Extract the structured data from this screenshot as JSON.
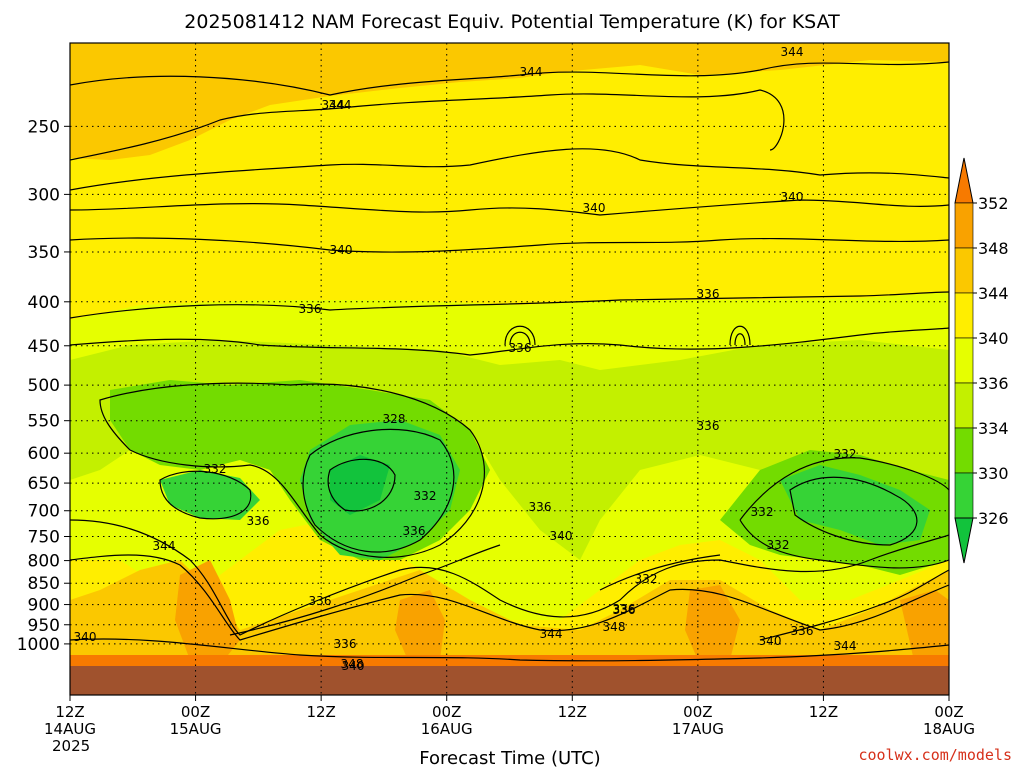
{
  "chart_data": {
    "type": "contour",
    "title": "2025081412 NAM Forecast Equiv. Potential Temperature (K) for KSAT",
    "xlabel": "Forecast Time (UTC)",
    "ylabel": "",
    "y_scale": "log-pressure",
    "y_direction": "decreasing-upward",
    "y_ticks": [
      "250",
      "300",
      "350",
      "400",
      "450",
      "500",
      "550",
      "600",
      "650",
      "700",
      "750",
      "800",
      "850",
      "900",
      "950",
      "1000"
    ],
    "x_ticks": [
      {
        "line1": "12Z",
        "line2": "14AUG",
        "line3": "2025"
      },
      {
        "line1": "00Z",
        "line2": "15AUG",
        "line3": ""
      },
      {
        "line1": "12Z",
        "line2": "",
        "line3": ""
      },
      {
        "line1": "00Z",
        "line2": "16AUG",
        "line3": ""
      },
      {
        "line1": "12Z",
        "line2": "",
        "line3": ""
      },
      {
        "line1": "00Z",
        "line2": "17AUG",
        "line3": ""
      },
      {
        "line1": "12Z",
        "line2": "",
        "line3": ""
      },
      {
        "line1": "00Z",
        "line2": "18AUG",
        "line3": ""
      }
    ],
    "grid": true,
    "colorbar": {
      "position": "right",
      "ticks": [
        "352",
        "348",
        "344",
        "340",
        "336",
        "334",
        "330",
        "326"
      ],
      "colors": [
        "#f77a00",
        "#f9a200",
        "#fbc800",
        "#ffee00",
        "#e6ff00",
        "#c3f000",
        "#73dc00",
        "#36d336",
        "#12c33c"
      ]
    },
    "contour_labels": [
      "344",
      "344",
      "344",
      "344",
      "340",
      "340",
      "340",
      "336",
      "336",
      "336",
      "336",
      "336",
      "332",
      "332",
      "332",
      "332",
      "332",
      "328",
      "336",
      "336",
      "340",
      "344",
      "344",
      "344",
      "340",
      "340",
      "336",
      "336",
      "348",
      "348",
      "336",
      "336",
      "332",
      "340",
      "336"
    ],
    "surface_band_color": "#a0522d"
  },
  "credit": "coolwx.com/models"
}
